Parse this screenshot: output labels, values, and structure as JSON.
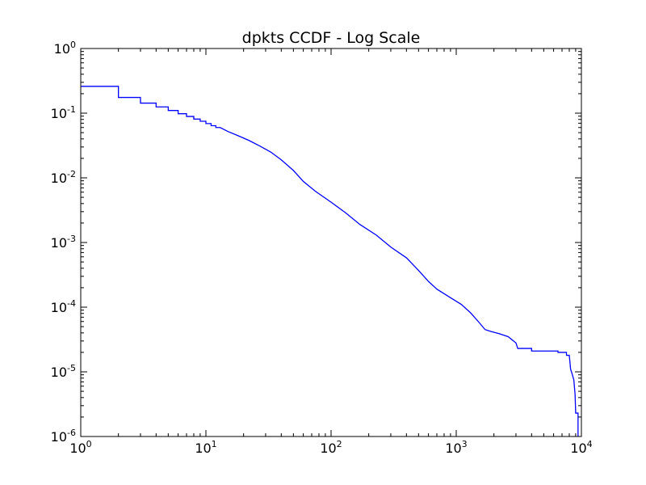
{
  "chart_data": {
    "type": "line",
    "title": "dpkts CCDF - Log Scale",
    "xlabel": "",
    "ylabel": "",
    "x_scale": "log",
    "y_scale": "log",
    "xlim": [
      1,
      10000
    ],
    "ylim": [
      1e-06,
      1
    ],
    "grid": false,
    "legend": "none",
    "line_color": "#0000ff",
    "x_ticks": [
      {
        "value": 1,
        "base": "10",
        "exp": "0"
      },
      {
        "value": 10,
        "base": "10",
        "exp": "1"
      },
      {
        "value": 100,
        "base": "10",
        "exp": "2"
      },
      {
        "value": 1000,
        "base": "10",
        "exp": "3"
      },
      {
        "value": 10000,
        "base": "10",
        "exp": "4"
      }
    ],
    "y_ticks": [
      {
        "value": 1,
        "base": "10",
        "exp": "0"
      },
      {
        "value": 0.1,
        "base": "10",
        "exp": "-1"
      },
      {
        "value": 0.01,
        "base": "10",
        "exp": "-2"
      },
      {
        "value": 0.001,
        "base": "10",
        "exp": "-3"
      },
      {
        "value": 0.0001,
        "base": "10",
        "exp": "-4"
      },
      {
        "value": 1e-05,
        "base": "10",
        "exp": "-5"
      },
      {
        "value": 1e-06,
        "base": "10",
        "exp": "-6"
      }
    ],
    "series": [
      {
        "points": [
          [
            1,
            0.26
          ],
          [
            2,
            0.26
          ],
          [
            2,
            0.175
          ],
          [
            3,
            0.175
          ],
          [
            3,
            0.143
          ],
          [
            4,
            0.143
          ],
          [
            4,
            0.125
          ],
          [
            5,
            0.125
          ],
          [
            5,
            0.11
          ],
          [
            6,
            0.11
          ],
          [
            6,
            0.098
          ],
          [
            7,
            0.098
          ],
          [
            7,
            0.089
          ],
          [
            8,
            0.089
          ],
          [
            8,
            0.081
          ],
          [
            9,
            0.081
          ],
          [
            9,
            0.075
          ],
          [
            10,
            0.075
          ],
          [
            10,
            0.069
          ],
          [
            11,
            0.069
          ],
          [
            11,
            0.064
          ],
          [
            12,
            0.064
          ],
          [
            12,
            0.06
          ],
          [
            13,
            0.06
          ],
          [
            15,
            0.052
          ],
          [
            18,
            0.045
          ],
          [
            22,
            0.038
          ],
          [
            27,
            0.031
          ],
          [
            33,
            0.025
          ],
          [
            40,
            0.019
          ],
          [
            50,
            0.013
          ],
          [
            60,
            0.0088
          ],
          [
            75,
            0.0062
          ],
          [
            100,
            0.0042
          ],
          [
            130,
            0.0029
          ],
          [
            170,
            0.0019
          ],
          [
            230,
            0.0013
          ],
          [
            300,
            0.00085
          ],
          [
            400,
            0.00058
          ],
          [
            500,
            0.00037
          ],
          [
            600,
            0.00025
          ],
          [
            700,
            0.00019
          ],
          [
            900,
            0.00014
          ],
          [
            1100,
            0.00011
          ],
          [
            1300,
            8.2e-05
          ],
          [
            1500,
            6e-05
          ],
          [
            1700,
            4.5e-05
          ],
          [
            1900,
            4.2e-05
          ],
          [
            2200,
            3.9e-05
          ],
          [
            2600,
            3.5e-05
          ],
          [
            3000,
            2.8e-05
          ],
          [
            3100,
            2.3e-05
          ],
          [
            4000,
            2.3e-05
          ],
          [
            4000,
            2.1e-05
          ],
          [
            6500,
            2.1e-05
          ],
          [
            6500,
            2e-05
          ],
          [
            7600,
            2e-05
          ],
          [
            7600,
            1.8e-05
          ],
          [
            8000,
            1.8e-05
          ],
          [
            8200,
            1.1e-05
          ],
          [
            8400,
            9.5e-06
          ],
          [
            8700,
            7.5e-06
          ],
          [
            8900,
            4.5e-06
          ],
          [
            9000,
            2.3e-06
          ],
          [
            9400,
            2.3e-06
          ],
          [
            9400,
            1e-06
          ]
        ]
      }
    ]
  }
}
